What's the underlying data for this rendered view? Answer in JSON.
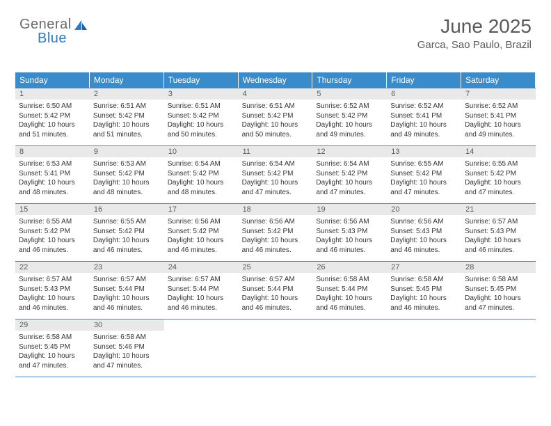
{
  "logo": {
    "text1": "General",
    "text2": "Blue"
  },
  "title": {
    "month": "June 2025",
    "location": "Garca, Sao Paulo, Brazil"
  },
  "colors": {
    "header_bg": "#3a8bc9",
    "header_text": "#ffffff",
    "daynum_bg": "#e9e9e9",
    "daynum_text": "#5a5a5a",
    "body_text": "#333333",
    "title_text": "#5a5a5a",
    "logo_gray": "#6a6a6a",
    "logo_blue": "#2c7ac9",
    "rule": "#3a8bc9"
  },
  "day_headers": [
    "Sunday",
    "Monday",
    "Tuesday",
    "Wednesday",
    "Thursday",
    "Friday",
    "Saturday"
  ],
  "start_offset": 0,
  "days": [
    {
      "n": 1,
      "sunrise": "6:50 AM",
      "sunset": "5:42 PM",
      "daylight": "10 hours and 51 minutes."
    },
    {
      "n": 2,
      "sunrise": "6:51 AM",
      "sunset": "5:42 PM",
      "daylight": "10 hours and 51 minutes."
    },
    {
      "n": 3,
      "sunrise": "6:51 AM",
      "sunset": "5:42 PM",
      "daylight": "10 hours and 50 minutes."
    },
    {
      "n": 4,
      "sunrise": "6:51 AM",
      "sunset": "5:42 PM",
      "daylight": "10 hours and 50 minutes."
    },
    {
      "n": 5,
      "sunrise": "6:52 AM",
      "sunset": "5:42 PM",
      "daylight": "10 hours and 49 minutes."
    },
    {
      "n": 6,
      "sunrise": "6:52 AM",
      "sunset": "5:41 PM",
      "daylight": "10 hours and 49 minutes."
    },
    {
      "n": 7,
      "sunrise": "6:52 AM",
      "sunset": "5:41 PM",
      "daylight": "10 hours and 49 minutes."
    },
    {
      "n": 8,
      "sunrise": "6:53 AM",
      "sunset": "5:41 PM",
      "daylight": "10 hours and 48 minutes."
    },
    {
      "n": 9,
      "sunrise": "6:53 AM",
      "sunset": "5:42 PM",
      "daylight": "10 hours and 48 minutes."
    },
    {
      "n": 10,
      "sunrise": "6:54 AM",
      "sunset": "5:42 PM",
      "daylight": "10 hours and 48 minutes."
    },
    {
      "n": 11,
      "sunrise": "6:54 AM",
      "sunset": "5:42 PM",
      "daylight": "10 hours and 47 minutes."
    },
    {
      "n": 12,
      "sunrise": "6:54 AM",
      "sunset": "5:42 PM",
      "daylight": "10 hours and 47 minutes."
    },
    {
      "n": 13,
      "sunrise": "6:55 AM",
      "sunset": "5:42 PM",
      "daylight": "10 hours and 47 minutes."
    },
    {
      "n": 14,
      "sunrise": "6:55 AM",
      "sunset": "5:42 PM",
      "daylight": "10 hours and 47 minutes."
    },
    {
      "n": 15,
      "sunrise": "6:55 AM",
      "sunset": "5:42 PM",
      "daylight": "10 hours and 46 minutes."
    },
    {
      "n": 16,
      "sunrise": "6:55 AM",
      "sunset": "5:42 PM",
      "daylight": "10 hours and 46 minutes."
    },
    {
      "n": 17,
      "sunrise": "6:56 AM",
      "sunset": "5:42 PM",
      "daylight": "10 hours and 46 minutes."
    },
    {
      "n": 18,
      "sunrise": "6:56 AM",
      "sunset": "5:42 PM",
      "daylight": "10 hours and 46 minutes."
    },
    {
      "n": 19,
      "sunrise": "6:56 AM",
      "sunset": "5:43 PM",
      "daylight": "10 hours and 46 minutes."
    },
    {
      "n": 20,
      "sunrise": "6:56 AM",
      "sunset": "5:43 PM",
      "daylight": "10 hours and 46 minutes."
    },
    {
      "n": 21,
      "sunrise": "6:57 AM",
      "sunset": "5:43 PM",
      "daylight": "10 hours and 46 minutes."
    },
    {
      "n": 22,
      "sunrise": "6:57 AM",
      "sunset": "5:43 PM",
      "daylight": "10 hours and 46 minutes."
    },
    {
      "n": 23,
      "sunrise": "6:57 AM",
      "sunset": "5:44 PM",
      "daylight": "10 hours and 46 minutes."
    },
    {
      "n": 24,
      "sunrise": "6:57 AM",
      "sunset": "5:44 PM",
      "daylight": "10 hours and 46 minutes."
    },
    {
      "n": 25,
      "sunrise": "6:57 AM",
      "sunset": "5:44 PM",
      "daylight": "10 hours and 46 minutes."
    },
    {
      "n": 26,
      "sunrise": "6:58 AM",
      "sunset": "5:44 PM",
      "daylight": "10 hours and 46 minutes."
    },
    {
      "n": 27,
      "sunrise": "6:58 AM",
      "sunset": "5:45 PM",
      "daylight": "10 hours and 46 minutes."
    },
    {
      "n": 28,
      "sunrise": "6:58 AM",
      "sunset": "5:45 PM",
      "daylight": "10 hours and 47 minutes."
    },
    {
      "n": 29,
      "sunrise": "6:58 AM",
      "sunset": "5:45 PM",
      "daylight": "10 hours and 47 minutes."
    },
    {
      "n": 30,
      "sunrise": "6:58 AM",
      "sunset": "5:46 PM",
      "daylight": "10 hours and 47 minutes."
    }
  ],
  "labels": {
    "sunrise": "Sunrise:",
    "sunset": "Sunset:",
    "daylight": "Daylight:"
  }
}
